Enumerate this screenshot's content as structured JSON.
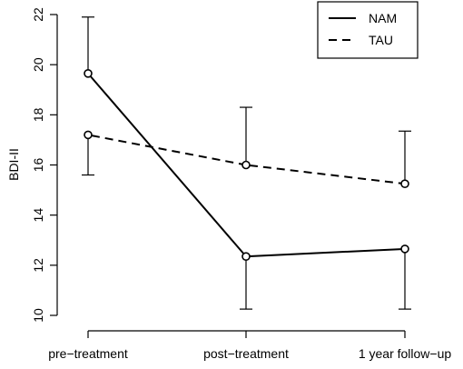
{
  "chart_data": {
    "type": "line",
    "title": "",
    "xlabel": "",
    "ylabel": "BDI-II",
    "categories": [
      "pre−treatment",
      "post−treatment",
      "1 year follow−up"
    ],
    "ylim": [
      10,
      22
    ],
    "yticks": [
      10,
      12,
      14,
      16,
      18,
      20,
      22
    ],
    "grid": false,
    "legend_position": "top-right",
    "series": [
      {
        "name": "NAM",
        "line_style": "solid",
        "color": "#000000",
        "values": [
          19.65,
          12.35,
          12.65
        ],
        "error_upper": [
          21.9,
          null,
          null
        ],
        "error_lower": [
          null,
          10.25,
          10.25
        ]
      },
      {
        "name": "TAU",
        "line_style": "dashed",
        "color": "#000000",
        "values": [
          17.2,
          16.0,
          15.25
        ],
        "error_upper": [
          null,
          18.3,
          17.35
        ],
        "error_lower": [
          15.6,
          null,
          null
        ]
      }
    ]
  }
}
